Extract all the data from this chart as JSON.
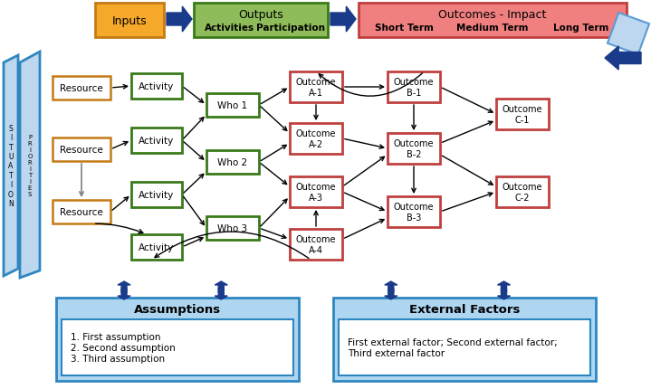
{
  "title_inputs": "Inputs",
  "title_outputs": "Outputs",
  "title_outputs_sub": [
    "Activities",
    "Participation"
  ],
  "title_outcomes": "Outcomes - Impact",
  "title_outcomes_sub": [
    "Short Term",
    "Medium Term",
    "Long Term"
  ],
  "situation_text": "S\nI\nT\nU\nA\nT\nI\nO\nN",
  "priorities_text": "P\nR\nI\nO\nR\nI\nT\nI\nE\nS",
  "resources": [
    "Resource",
    "Resource",
    "Resource"
  ],
  "activities": [
    "Activity",
    "Activity",
    "Activity",
    "Activity"
  ],
  "who": [
    "Who 1",
    "Who 2",
    "Who 3"
  ],
  "outcomes_a": [
    "Outcome\nA-1",
    "Outcome\nA-2",
    "Outcome\nA-3",
    "Outcome\nA-4"
  ],
  "outcomes_b": [
    "Outcome\nB-1",
    "Outcome\nB-2",
    "Outcome\nB-3"
  ],
  "outcomes_c": [
    "Outcome\nC-1",
    "Outcome\nC-2"
  ],
  "assumptions_title": "Assumptions",
  "assumptions_text": "1. First assumption\n2. Second assumption\n3. Third assumption",
  "external_title": "External Factors",
  "external_text": "First external factor; Second external factor;\nThird external factor",
  "color_inputs_bg": "#F5A82A",
  "color_inputs_border": "#C47B15",
  "color_outputs_bg": "#8FBC5A",
  "color_outputs_border": "#3A7A1A",
  "color_outcomes_bg": "#F08080",
  "color_outcomes_border": "#C04040",
  "color_resource_bg": "white",
  "color_resource_border": "#C47B15",
  "color_activity_bg": "white",
  "color_activity_border": "#3A7A1A",
  "color_who_bg": "white",
  "color_who_border": "#3A7A1A",
  "color_outcome_node_bg": "white",
  "color_outcome_node_border": "#C04040",
  "color_assumptions_bg": "#AED6F1",
  "color_assumptions_border": "#2E86C1",
  "color_external_bg": "#AED6F1",
  "color_external_border": "#2E86C1",
  "color_main_arrow": "#1A3A8A",
  "color_black_arrow": "black",
  "color_gray_arrow": "#808080",
  "color_situation_bg": "#BDD7EE",
  "color_situation_border": "#2E86C1",
  "color_priorities_bg": "#BDD7EE",
  "color_priorities_border": "#2E86C1"
}
